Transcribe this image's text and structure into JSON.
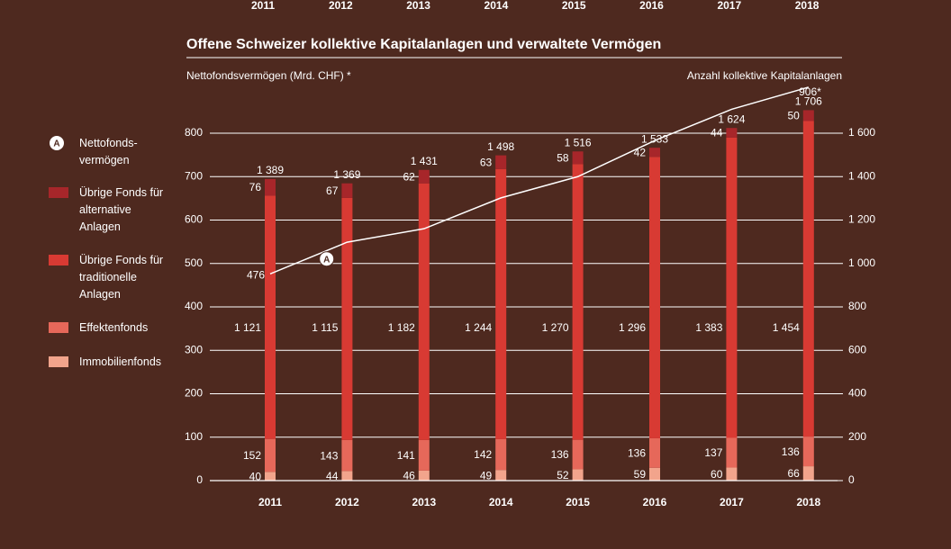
{
  "chart_data": {
    "type": "bar-line",
    "title": "Offene Schweizer kollektive Kapitalanlagen und verwaltete Vermögen",
    "y_label": "Nettofondsvermögen (Mrd. CHF) *",
    "y2_label": "Anzahl kollektive Kapitalanlagen",
    "categories": [
      "2011",
      "2012",
      "2013",
      "2014",
      "2015",
      "2016",
      "2017",
      "2018"
    ],
    "ylim": [
      0,
      880
    ],
    "yticks": [
      0,
      100,
      200,
      300,
      400,
      500,
      600,
      700,
      800
    ],
    "y2lim": [
      0,
      1760
    ],
    "y2ticks": [
      0,
      200,
      400,
      600,
      800,
      {
        "value": 1000,
        "label": "1 000"
      },
      {
        "value": 1200,
        "label": "1 200"
      },
      {
        "value": 1400,
        "label": "1 400"
      },
      {
        "value": 1600,
        "label": "1 600"
      }
    ],
    "grid": true,
    "series": [
      {
        "name": "Immobilienfonds",
        "color": "#f2a48c",
        "axis": "y2",
        "values": [
          40,
          44,
          46,
          49,
          52,
          59,
          60,
          66
        ]
      },
      {
        "name": "Effektenfonds",
        "color": "#e6685a",
        "axis": "y2",
        "values": [
          152,
          143,
          141,
          142,
          136,
          136,
          137,
          136
        ]
      },
      {
        "name": "Übrige Fonds für traditionelle Anlagen",
        "color": "#d83a33",
        "axis": "y2",
        "values": [
          1121,
          1115,
          1182,
          1244,
          1270,
          1296,
          1383,
          1454
        ],
        "value_labels": [
          "1 121",
          "1 115",
          "1 182",
          "1 244",
          "1 270",
          "1 296",
          "1 383",
          "1 454"
        ]
      },
      {
        "name": "Übrige Fonds für alternative Anlagen",
        "color": "#a7262a",
        "axis": "y2",
        "values": [
          76,
          67,
          62,
          63,
          58,
          42,
          44,
          50
        ]
      },
      {
        "name": "Nettofonds- vermögen",
        "color": "#ffffff",
        "axis": "y",
        "marker_label": "A",
        "values": [
          476,
          549,
          580,
          651,
          700,
          783,
          855,
          906
        ],
        "value_labels": [
          "476",
          null,
          null,
          null,
          null,
          null,
          null,
          "906*"
        ]
      }
    ],
    "totals": [
      1389,
      1369,
      1431,
      1498,
      1516,
      1533,
      1624,
      1706
    ],
    "total_labels": [
      "1 389",
      "1 369",
      "1 431",
      "1 498",
      "1 516",
      "1 533",
      "1 624",
      "1 706"
    ]
  }
}
